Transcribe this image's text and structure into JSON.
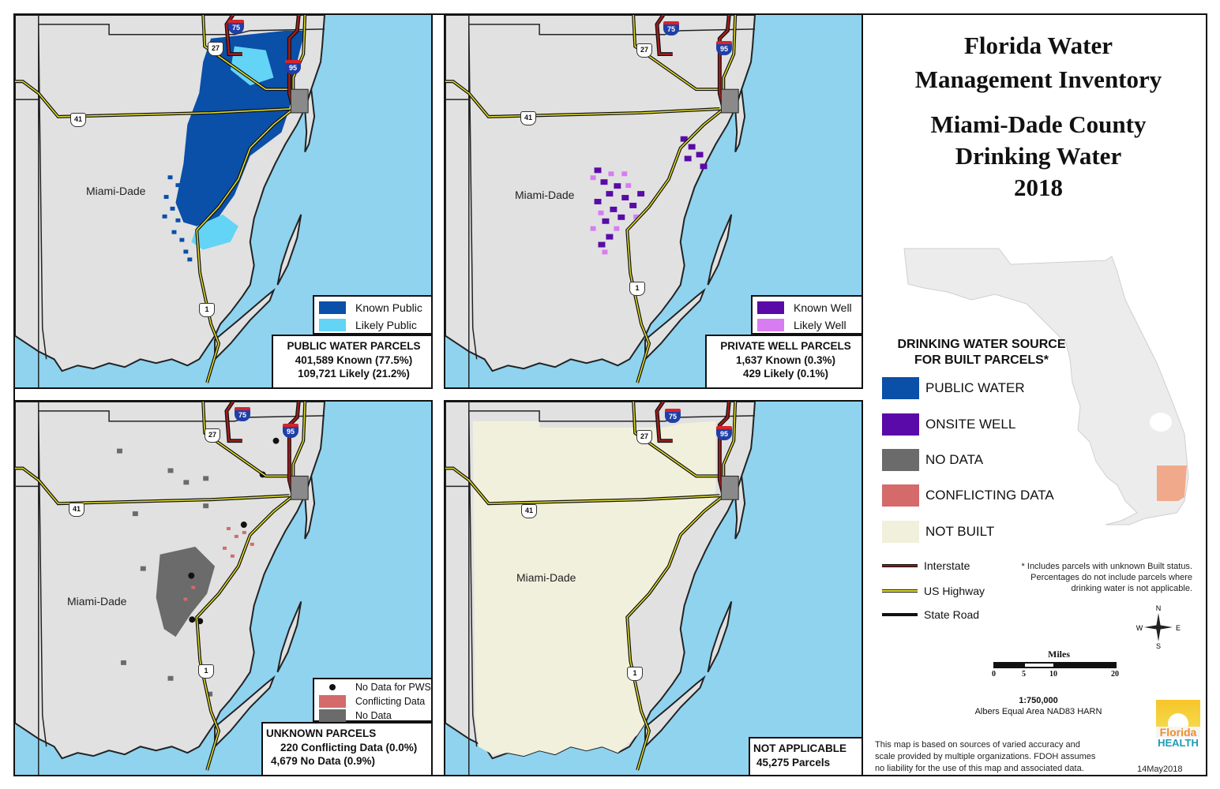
{
  "title": {
    "line1": "Florida Water",
    "line2": "Management Inventory",
    "line3": "Miami-Dade County",
    "line4": "Drinking Water",
    "line5": "2018"
  },
  "colors": {
    "water": "#8fd3ef",
    "land": "#e1e1e1",
    "known_public": "#0a4fa8",
    "likely_public": "#63d4f5",
    "known_well": "#5a0aa8",
    "likely_well": "#d87cf2",
    "no_data": "#6b6b6b",
    "conflicting": "#d46a6a",
    "not_built": "#f1f0dc",
    "interstate": "#8c1a1a",
    "us_highway": "#e7e22a",
    "state_road": "#111111",
    "inset_county": "#f0a98a"
  },
  "panels": {
    "public_water": {
      "county_label": "Miami-Dade",
      "legend": [
        {
          "label": "Known Public",
          "color": "#0a4fa8"
        },
        {
          "label": "Likely Public",
          "color": "#63d4f5"
        }
      ],
      "stats_title": "PUBLIC WATER PARCELS",
      "stats_lines": [
        "401,589 Known (77.5%)",
        "109,721 Likely (21.2%)"
      ]
    },
    "private_well": {
      "county_label": "Miami-Dade",
      "legend": [
        {
          "label": "Known Well",
          "color": "#5a0aa8"
        },
        {
          "label": "Likely Well",
          "color": "#d87cf2"
        }
      ],
      "stats_title": "PRIVATE WELL PARCELS",
      "stats_lines": [
        "1,637 Known (0.3%)",
        "429 Likely (0.1%)"
      ]
    },
    "unknown": {
      "county_label": "Miami-Dade",
      "legend": [
        {
          "label": "No Data for PWS",
          "type": "dot"
        },
        {
          "label": "Conflicting Data",
          "color": "#d46a6a"
        },
        {
          "label": "No Data",
          "color": "#6b6b6b"
        }
      ],
      "stats_title": "UNKNOWN PARCELS",
      "stats_lines": [
        "220 Conflicting Data (0.0%)",
        "4,679 No Data (0.9%)"
      ]
    },
    "not_applicable": {
      "county_label": "Miami-Dade",
      "stats_title": "NOT APPLICABLE",
      "stats_lines": [
        "45,275 Parcels"
      ]
    }
  },
  "road_shields": {
    "i75": "75",
    "i95": "95",
    "us27": "27",
    "us41": "41",
    "us1": "1"
  },
  "main_legend": {
    "title_line1": "DRINKING WATER SOURCE",
    "title_line2": "FOR BUILT PARCELS*",
    "items": [
      {
        "label": "PUBLIC WATER",
        "color": "#0a4fa8"
      },
      {
        "label": "ONSITE WELL",
        "color": "#5a0aa8"
      },
      {
        "label": "NO DATA",
        "color": "#6b6b6b"
      },
      {
        "label": "CONFLICTING DATA",
        "color": "#d46a6a"
      },
      {
        "label": "NOT BUILT",
        "color": "#f1f0dc"
      }
    ],
    "roads": [
      {
        "label": "Interstate"
      },
      {
        "label": "US Highway"
      },
      {
        "label": "State Road"
      }
    ]
  },
  "footnote": {
    "line1": "* Includes parcels with unknown Built status.",
    "line2": "Percentages do not include parcels where",
    "line3": "drinking water is not applicable."
  },
  "compass": {
    "n": "N",
    "s": "S",
    "e": "E",
    "w": "W"
  },
  "scale": {
    "title": "Miles",
    "ticks": [
      "0",
      "5",
      "10",
      "20"
    ],
    "ratio": "1:750,000",
    "projection": "Albers Equal Area NAD83 HARN"
  },
  "disclaimer": {
    "line1": "This map is based on sources of varied accuracy and",
    "line2": "scale provided by multiple organizations. FDOH assumes",
    "line3": "no liability for the use of this map and associated data."
  },
  "logo": {
    "line1": "Florida",
    "line2": "HEALTH"
  },
  "date": "14May2018"
}
